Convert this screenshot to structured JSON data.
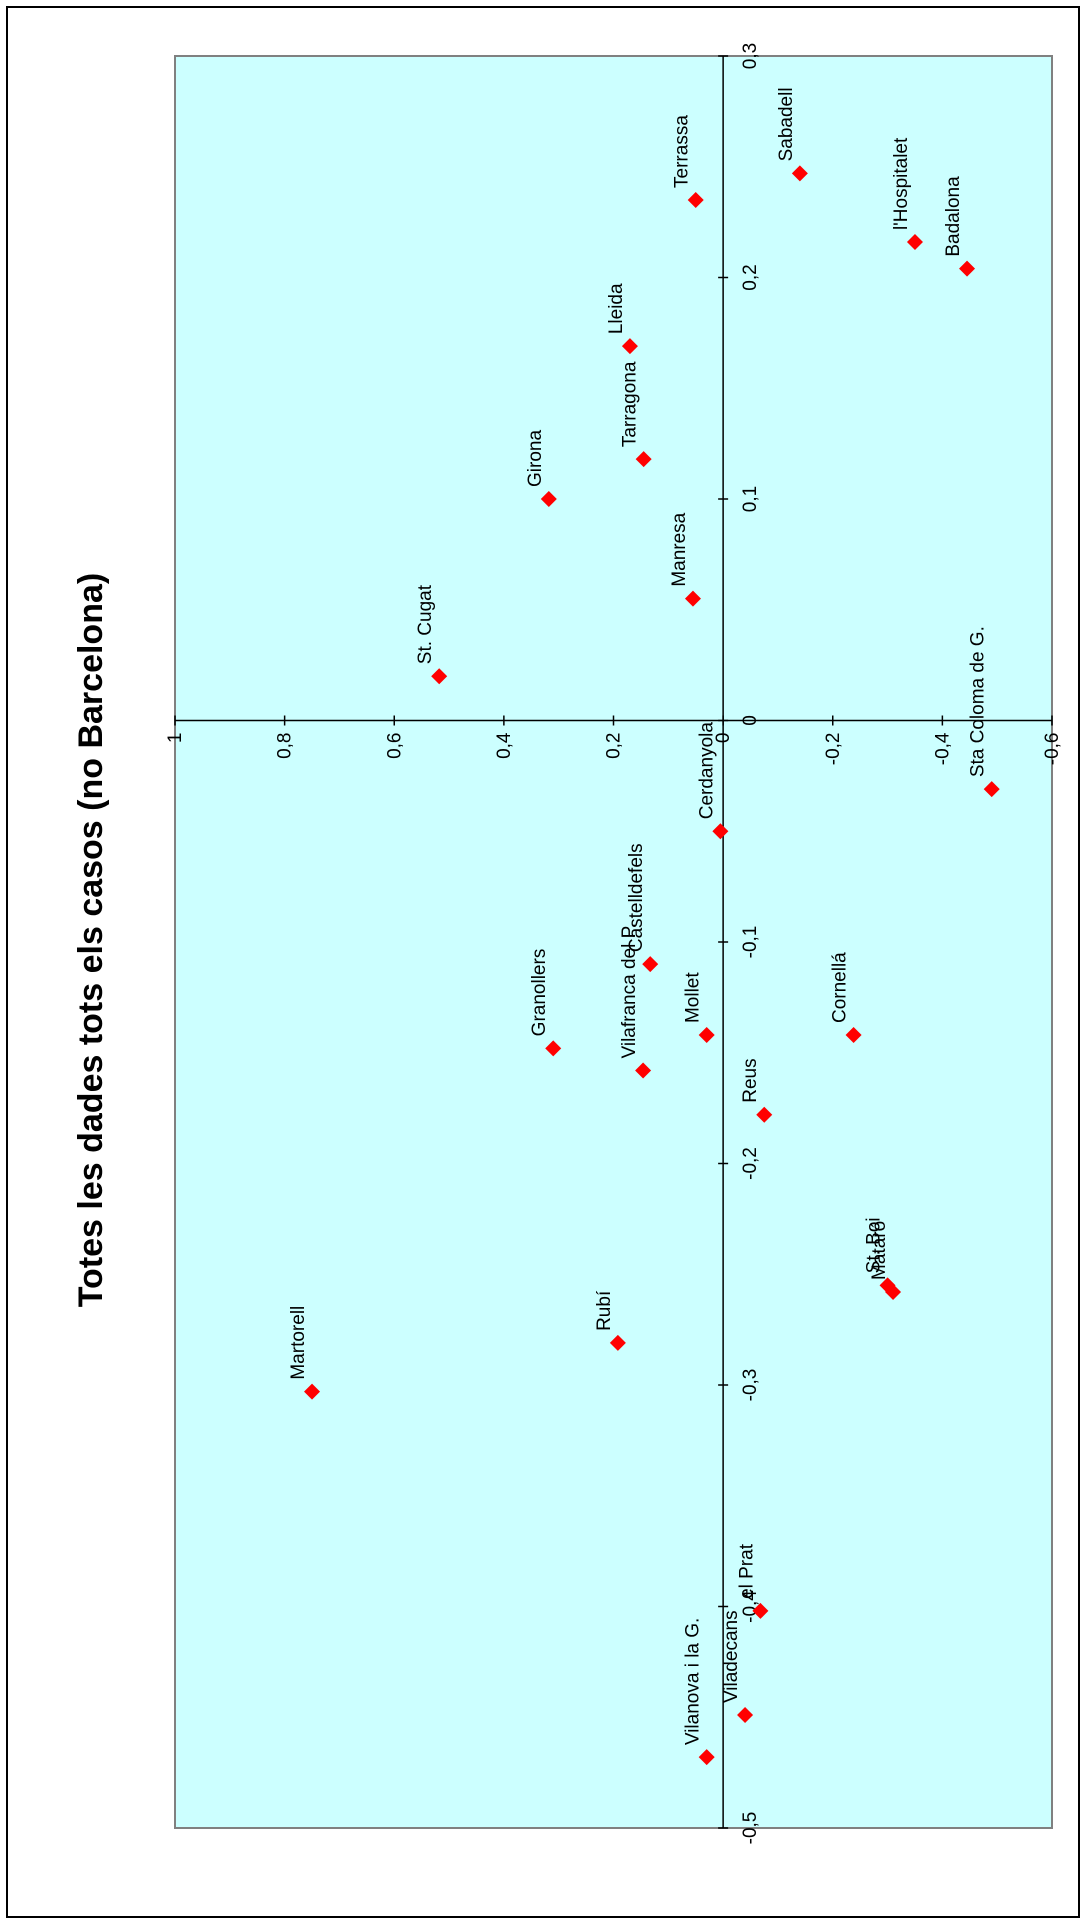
{
  "chart_data": {
    "type": "scatter",
    "title": "Totes les dades tots els casos (no Barcelona)",
    "orientation": "rotated-90-ccw",
    "x_axis": {
      "lim": [
        -0.5,
        0.3
      ],
      "ticks": [
        -0.5,
        -0.4,
        -0.3,
        -0.2,
        -0.1,
        0,
        0.1,
        0.2,
        0.3
      ],
      "tick_labels": [
        "-0,5",
        "-0,4",
        "-0,3",
        "-0,2",
        "-0,1",
        "0",
        "0,1",
        "0,2",
        "0,3"
      ]
    },
    "y_axis": {
      "lim": [
        -0.6,
        1.0
      ],
      "ticks": [
        1,
        0.8,
        0.6,
        0.4,
        0.2,
        0,
        -0.2,
        -0.4,
        -0.6
      ],
      "tick_labels": [
        "1",
        "0,8",
        "0,6",
        "0,4",
        "0,2",
        "0",
        "-0,2",
        "-0,4",
        "-0,6"
      ]
    },
    "grid": false,
    "legend": "none",
    "marker": "diamond",
    "colors": {
      "plot_bg": "#ccffff",
      "marker": "#ff0000",
      "axis": "#000000",
      "page_bg": "#ffffff"
    },
    "points": [
      {
        "label": "Terrassa",
        "x": 0.235,
        "y": 0.05
      },
      {
        "label": "Sabadell",
        "x": 0.247,
        "y": -0.14
      },
      {
        "label": "l'Hospitalet",
        "x": 0.216,
        "y": -0.35
      },
      {
        "label": "Badalona",
        "x": 0.204,
        "y": -0.445
      },
      {
        "label": "Lleida",
        "x": 0.169,
        "y": 0.17
      },
      {
        "label": "Tarragona",
        "x": 0.118,
        "y": 0.145
      },
      {
        "label": "Girona",
        "x": 0.1,
        "y": 0.318
      },
      {
        "label": "Manresa",
        "x": 0.055,
        "y": 0.055
      },
      {
        "label": "St. Cugat",
        "x": 0.02,
        "y": 0.518
      },
      {
        "label": "Sta Coloma de G.",
        "x": -0.031,
        "y": -0.49
      },
      {
        "label": "Cerdanyola",
        "x": -0.05,
        "y": 0.005
      },
      {
        "label": "Castelldefels",
        "x": -0.11,
        "y": 0.133
      },
      {
        "label": "Granollers",
        "x": -0.148,
        "y": 0.31
      },
      {
        "label": "Mollet",
        "x": -0.142,
        "y": 0.03
      },
      {
        "label": "Cornellá",
        "x": -0.142,
        "y": -0.238
      },
      {
        "label": "Vilafranca del P.",
        "x": -0.158,
        "y": 0.146
      },
      {
        "label": "Reus",
        "x": -0.178,
        "y": -0.075
      },
      {
        "label": "Rubí",
        "x": -0.281,
        "y": 0.192
      },
      {
        "label": "Martorell",
        "x": -0.303,
        "y": 0.75
      },
      {
        "label": "St. Boi",
        "x": -0.255,
        "y": -0.3
      },
      {
        "label": "Mataró",
        "x": -0.258,
        "y": -0.31
      },
      {
        "label": "el Prat",
        "x": -0.402,
        "y": -0.068
      },
      {
        "label": "Viladecans",
        "x": -0.449,
        "y": -0.04
      },
      {
        "label": "Vilanova i la G.",
        "x": -0.468,
        "y": 0.03
      }
    ]
  }
}
